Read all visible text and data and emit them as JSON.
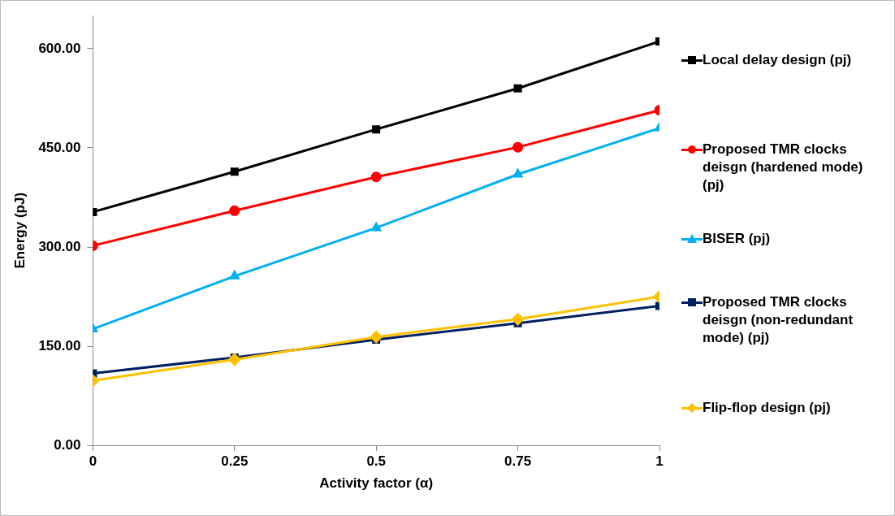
{
  "chart_data": {
    "type": "line",
    "xlabel": "Activity factor (α)",
    "ylabel": "Energy (pJ)",
    "x": [
      0,
      0.25,
      0.5,
      0.75,
      1
    ],
    "xlim": [
      0,
      1
    ],
    "xticks": [
      0,
      0.25,
      0.5,
      0.75,
      1
    ],
    "ylim": [
      0,
      650
    ],
    "yticks": [
      {
        "value": 0,
        "label": "0.00"
      },
      {
        "value": 150,
        "label": "150.00"
      },
      {
        "value": 300,
        "label": "300.00"
      },
      {
        "value": 450,
        "label": "450.00"
      },
      {
        "value": 600,
        "label": "600.00"
      }
    ],
    "grid": false,
    "legend": "right",
    "line_style": "solid",
    "series": [
      {
        "name": "Local delay design (pj)",
        "color": "#000000",
        "marker": "square",
        "values": [
          353,
          414,
          478,
          540,
          611
        ]
      },
      {
        "name": "Proposed TMR clocks deisgn (hardened mode) (pj)",
        "color": "#ff0000",
        "marker": "circle",
        "values": [
          302,
          355,
          406,
          451,
          507
        ]
      },
      {
        "name": "BISER (pj)",
        "color": "#00b0f0",
        "marker": "triangle",
        "values": [
          176,
          256,
          329,
          410,
          480
        ]
      },
      {
        "name": "Proposed TMR clocks deisgn (non-redundant mode) (pj)",
        "color": "#002060",
        "marker": "square",
        "values": [
          109,
          133,
          160,
          185,
          211
        ]
      },
      {
        "name": "Flip-flop design (pj)",
        "color": "#ffc000",
        "marker": "diamond",
        "values": [
          98,
          130,
          164,
          191,
          225
        ]
      }
    ]
  }
}
